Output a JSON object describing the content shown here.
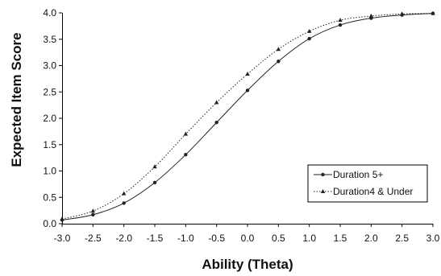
{
  "chart_data": {
    "type": "line",
    "title": "",
    "xlabel": "Ability (Theta)",
    "ylabel": "Expected Item Score",
    "xlim": [
      -3.0,
      3.0
    ],
    "ylim": [
      0.0,
      4.0
    ],
    "x_ticks": [
      "-3.0",
      "-2.5",
      "-2.0",
      "-1.5",
      "-1.0",
      "-0.5",
      "0.0",
      "0.5",
      "1.0",
      "1.5",
      "2.0",
      "2.5",
      "3.0"
    ],
    "y_ticks": [
      "0.0",
      "0.5",
      "1.0",
      "1.5",
      "2.0",
      "2.5",
      "3.0",
      "3.5",
      "4.0"
    ],
    "grid": false,
    "legend_position": "bottom-right",
    "x": [
      -3.0,
      -2.5,
      -2.0,
      -1.5,
      -1.0,
      -0.5,
      0.0,
      0.5,
      1.0,
      1.5,
      2.0,
      2.5,
      3.0
    ],
    "series": [
      {
        "name": "Duration 5+",
        "line_style": "solid",
        "marker": "circle",
        "values": [
          0.07,
          0.17,
          0.39,
          0.78,
          1.31,
          1.92,
          2.53,
          3.08,
          3.51,
          3.77,
          3.9,
          3.96,
          3.99
        ]
      },
      {
        "name": "Duration4 & Under",
        "line_style": "dotted",
        "marker": "triangle",
        "values": [
          0.09,
          0.24,
          0.57,
          1.08,
          1.7,
          2.3,
          2.84,
          3.31,
          3.65,
          3.86,
          3.94,
          3.98,
          3.99
        ]
      }
    ],
    "colors": {
      "lines": "#222222",
      "axes": "#000000",
      "background": "#ffffff"
    }
  }
}
